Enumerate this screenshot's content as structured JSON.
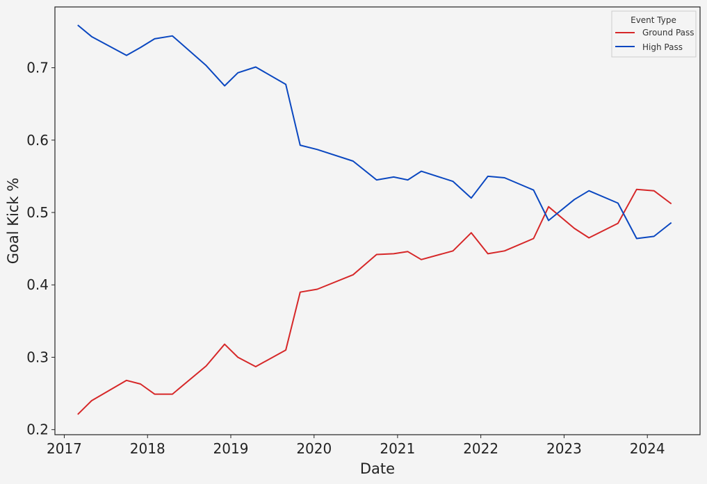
{
  "chart_data": {
    "type": "line",
    "title": "",
    "xlabel": "Date",
    "ylabel": "Goal Kick %",
    "x_ticks": [
      "2017",
      "2018",
      "2019",
      "2020",
      "2021",
      "2022",
      "2023",
      "2024"
    ],
    "y_ticks": [
      "0.2",
      "0.3",
      "0.4",
      "0.5",
      "0.6",
      "0.7"
    ],
    "xlim": [
      "2016-11-21",
      "2024-08-19"
    ],
    "ylim": [
      0.193,
      0.784
    ],
    "grid": false,
    "legend": {
      "title": "Event Type",
      "placement": "top-right"
    },
    "x": [
      "2017-03-01",
      "2017-05-01",
      "2017-10-01",
      "2017-12-01",
      "2018-02-01",
      "2018-04-20",
      "2018-09-15",
      "2018-12-05",
      "2019-02-01",
      "2019-04-20",
      "2019-08-30",
      "2019-11-01",
      "2020-01-15",
      "2020-06-20",
      "2020-10-01",
      "2020-12-15",
      "2021-02-15",
      "2021-04-15",
      "2021-09-01",
      "2021-11-20",
      "2022-02-01",
      "2022-04-15",
      "2022-08-20",
      "2022-10-25",
      "2023-02-15",
      "2023-04-20",
      "2023-08-25",
      "2023-11-15",
      "2024-01-30",
      "2024-04-15"
    ],
    "series": [
      {
        "name": "Ground Pass",
        "color": "#d62728",
        "values": [
          0.221,
          0.24,
          0.268,
          0.263,
          0.249,
          0.249,
          0.288,
          0.318,
          0.3,
          0.287,
          0.31,
          0.39,
          0.394,
          0.414,
          0.442,
          0.443,
          0.446,
          0.435,
          0.447,
          0.472,
          0.443,
          0.447,
          0.464,
          0.508,
          0.478,
          0.465,
          0.485,
          0.532,
          0.53,
          0.512
        ]
      },
      {
        "name": "High Pass",
        "color": "#0a47c0",
        "values": [
          0.759,
          0.743,
          0.717,
          0.728,
          0.74,
          0.744,
          0.703,
          0.675,
          0.693,
          0.701,
          0.677,
          0.593,
          0.587,
          0.571,
          0.545,
          0.549,
          0.545,
          0.557,
          0.543,
          0.52,
          0.55,
          0.548,
          0.531,
          0.489,
          0.518,
          0.53,
          0.513,
          0.464,
          0.467,
          0.486
        ]
      }
    ]
  }
}
